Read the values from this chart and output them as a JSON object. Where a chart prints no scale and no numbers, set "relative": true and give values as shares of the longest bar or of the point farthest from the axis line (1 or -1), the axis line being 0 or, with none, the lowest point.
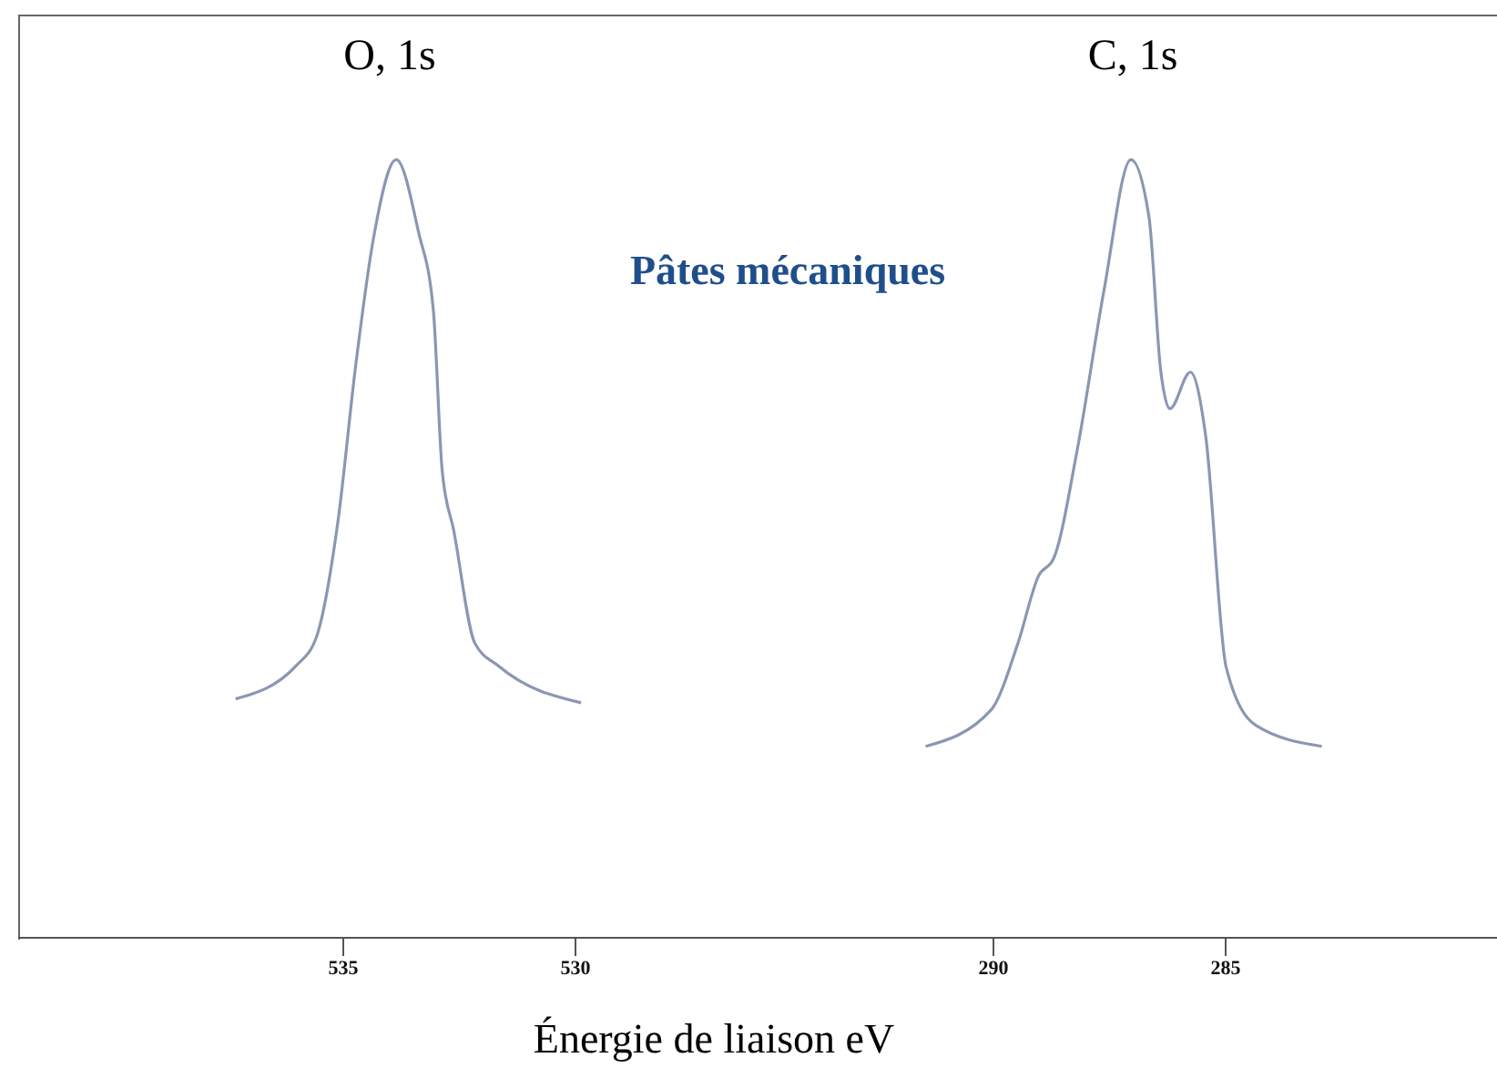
{
  "chart_data": [
    {
      "type": "line",
      "title": "O, 1s",
      "xlabel": "Énergie de liaison eV",
      "annotations": [
        "Pâtes mécaniques"
      ],
      "relative": true,
      "xlim": [
        542,
        526
      ],
      "xticks": [
        535,
        530
      ],
      "x": [
        537.32,
        536.01,
        535.57,
        535.12,
        534.73,
        534.35,
        533.86,
        533.38,
        533.06,
        532.87,
        532.62,
        532.17,
        531.65,
        529.88
      ],
      "series": [
        {
          "color": "#8a97b3",
          "values": [
            0.307,
            0.35,
            0.388,
            0.533,
            0.737,
            0.899,
            1.0,
            0.907,
            0.806,
            0.6,
            0.523,
            0.379,
            0.349,
            0.302
          ]
        }
      ]
    },
    {
      "type": "line",
      "title": "C, 1s",
      "relative": true,
      "xlim": [
        295,
        279
      ],
      "xticks": [
        290,
        285
      ],
      "x": [
        291.46,
        290.05,
        289.47,
        289.03,
        288.7,
        288.19,
        287.62,
        287.04,
        286.65,
        286.4,
        286.2,
        285.76,
        285.43,
        284.99,
        284.35,
        282.93
      ],
      "series": [
        {
          "color": "#8a97b3",
          "values": [
            0.246,
            0.293,
            0.379,
            0.465,
            0.488,
            0.629,
            0.832,
            1.0,
            0.926,
            0.73,
            0.68,
            0.727,
            0.645,
            0.348,
            0.273,
            0.246
          ]
        }
      ]
    }
  ]
}
